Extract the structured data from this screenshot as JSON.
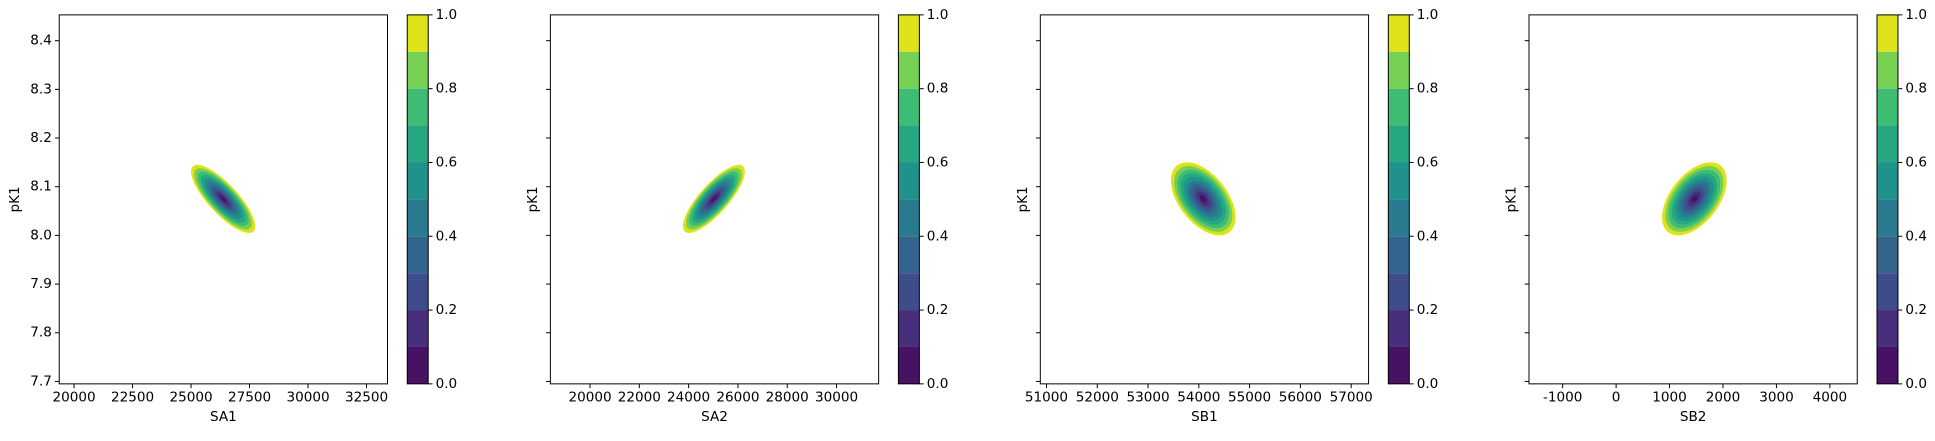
{
  "chart_data": [
    {
      "type": "contour",
      "xlabel": "SA1",
      "ylabel": "pK1",
      "xlim": [
        19367,
        33396
      ],
      "ylim": [
        7.695,
        8.453
      ],
      "xticks": [
        20000,
        22500,
        25000,
        27500,
        30000,
        32500
      ],
      "yticks": [
        7.7,
        7.8,
        7.9,
        {
          "value": 8.0,
          "label": "8.0"
        },
        8.1,
        8.2,
        8.3,
        8.4
      ],
      "center_x": 26370,
      "center_y": 8.075,
      "width_x": 1370,
      "width_y": 0.07,
      "rho": -0.8,
      "levels": [
        0,
        0.1,
        0.2,
        0.3,
        0.4,
        0.5,
        0.6,
        0.7,
        0.8,
        0.9,
        1.0
      ],
      "colors": [
        "#471164",
        "#472f7d",
        "#3e4c8a",
        "#32648e",
        "#297a8e",
        "#21918c",
        "#25a782",
        "#3fbc73",
        "#75d054",
        "#dde318"
      ],
      "cticks": [
        {
          "value": 0,
          "label": "0.0"
        },
        0.2,
        0.4,
        0.6,
        0.8,
        {
          "value": 1,
          "label": "1.0"
        }
      ]
    },
    {
      "type": "contour",
      "xlabel": "SA2",
      "ylabel": "pK1",
      "sharey": true,
      "xlim": [
        18392,
        31709
      ],
      "ylim": [
        7.695,
        8.453
      ],
      "xticks": [
        20000,
        22000,
        24000,
        26000,
        28000,
        30000
      ],
      "center_x": 25025,
      "center_y": 8.075,
      "width_x": 1256,
      "width_y": 0.07,
      "rho": 0.8,
      "levels": [
        0,
        0.1,
        0.2,
        0.3,
        0.4,
        0.5,
        0.6,
        0.7,
        0.8,
        0.9,
        1.0
      ],
      "colors": [
        "#471164",
        "#472f7d",
        "#3e4c8a",
        "#32648e",
        "#297a8e",
        "#21918c",
        "#25a782",
        "#3fbc73",
        "#75d054",
        "#dde318"
      ],
      "cticks": [
        {
          "value": 0,
          "label": "0.0"
        },
        0.2,
        0.4,
        0.6,
        0.8,
        {
          "value": 1,
          "label": "1.0"
        }
      ]
    },
    {
      "type": "contour",
      "xlabel": "SB1",
      "ylabel": "pK1",
      "sharey": true,
      "xlim": [
        50878,
        57343
      ],
      "ylim": [
        7.695,
        8.453
      ],
      "xticks": [
        51000,
        52000,
        53000,
        54000,
        55000,
        56000,
        57000
      ],
      "center_x": 54086,
      "center_y": 8.075,
      "width_x": 637,
      "width_y": 0.075,
      "rho": -0.5,
      "levels": [
        0,
        0.1,
        0.2,
        0.3,
        0.4,
        0.5,
        0.6,
        0.7,
        0.8,
        0.9,
        1.0
      ],
      "colors": [
        "#471164",
        "#472f7d",
        "#3e4c8a",
        "#32648e",
        "#297a8e",
        "#21918c",
        "#25a782",
        "#3fbc73",
        "#75d054",
        "#dde318"
      ],
      "cticks": [
        {
          "value": 0,
          "label": "0.0"
        },
        0.2,
        0.4,
        0.6,
        0.8,
        {
          "value": 1,
          "label": "1.0"
        }
      ]
    },
    {
      "type": "contour",
      "xlabel": "SB2",
      "ylabel": "pK1",
      "sharey": true,
      "xlim": [
        -1630,
        4512
      ],
      "ylim": [
        7.695,
        8.453
      ],
      "xticks": [
        -1000,
        0,
        1000,
        2000,
        3000,
        4000
      ],
      "center_x": 1465,
      "center_y": 8.075,
      "width_x": 605,
      "width_y": 0.075,
      "rho": 0.5,
      "levels": [
        0,
        0.1,
        0.2,
        0.3,
        0.4,
        0.5,
        0.6,
        0.7,
        0.8,
        0.9,
        1.0
      ],
      "colors": [
        "#471164",
        "#472f7d",
        "#3e4c8a",
        "#32648e",
        "#297a8e",
        "#21918c",
        "#25a782",
        "#3fbc73",
        "#75d054",
        "#dde318"
      ],
      "cticks": [
        {
          "value": 0,
          "label": "0.0"
        },
        0.2,
        0.4,
        0.6,
        0.8,
        {
          "value": 1,
          "label": "1.0"
        }
      ]
    }
  ]
}
